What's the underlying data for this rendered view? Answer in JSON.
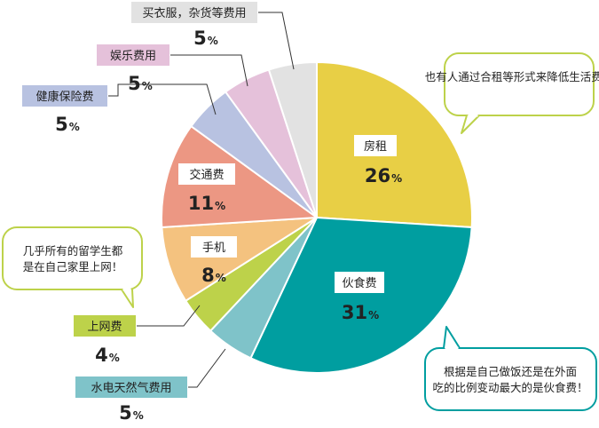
{
  "chart_data": {
    "type": "pie",
    "title": "",
    "categories": [
      "房租",
      "伙食费",
      "水电天然气费用",
      "上网费",
      "手机",
      "交通费",
      "健康保险费",
      "娱乐费用",
      "买衣服，杂货等费用"
    ],
    "values": [
      26,
      31,
      5,
      4,
      8,
      11,
      5,
      5,
      5
    ],
    "unit": "%",
    "colors": [
      "#e8cf45",
      "#009ea0",
      "#7fc3c9",
      "#bdd24a",
      "#f4c27f",
      "#ec9783",
      "#b8c2e1",
      "#e5c1da",
      "#e2e2e2"
    ],
    "annotations": [
      "也有人通过合租等形式来降低生活费！",
      "根据是自己做饭还是在外面吃的比例变动最大的是伙食费！",
      "几乎所有的留学生都是在自己家里上网！"
    ]
  }
}
